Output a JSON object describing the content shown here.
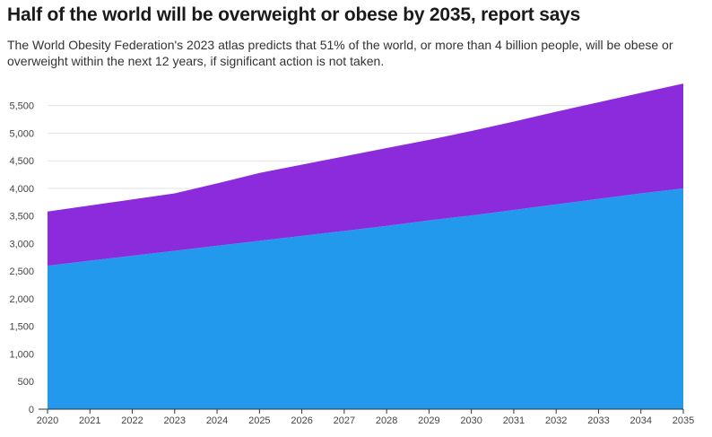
{
  "title": "Half of the world will be overweight or obese by 2035, report says",
  "subtitle": "The World Obesity Federation's 2023 atlas predicts that 51% of the world, or more than 4 billion people, will be obese or overweight within the next 12 years, if significant action is not taken.",
  "chart_data": {
    "type": "area",
    "stacked": true,
    "x": [
      2020,
      2021,
      2022,
      2023,
      2024,
      2025,
      2026,
      2027,
      2028,
      2029,
      2030,
      2031,
      2032,
      2033,
      2034,
      2035
    ],
    "x_tick_labels": [
      "2020",
      "2021",
      "2022",
      "2023",
      "2024",
      "2025",
      "2026",
      "2027",
      "2028",
      "2029",
      "2030",
      "2031",
      "2032",
      "2033",
      "2034",
      "2035"
    ],
    "y_ticks": [
      0,
      500,
      1000,
      1500,
      2000,
      2500,
      3000,
      3500,
      4000,
      4500,
      5000,
      5500
    ],
    "y_tick_labels": [
      "0",
      "500",
      "1,000",
      "1,500",
      "2,000",
      "2,500",
      "3,000",
      "3,500",
      "4,000",
      "4,500",
      "5,000",
      "5,500"
    ],
    "ylim": [
      0,
      5950
    ],
    "grid": true,
    "series": [
      {
        "values": [
          2600,
          2690,
          2780,
          2870,
          2960,
          3050,
          3140,
          3230,
          3320,
          3420,
          3510,
          3610,
          3710,
          3810,
          3910,
          4000
        ],
        "color": "#2399ee"
      },
      {
        "values": [
          980,
          1000,
          1020,
          1040,
          1130,
          1230,
          1290,
          1350,
          1410,
          1460,
          1530,
          1600,
          1680,
          1750,
          1820,
          1900
        ],
        "color": "#8b2bdb"
      }
    ]
  }
}
